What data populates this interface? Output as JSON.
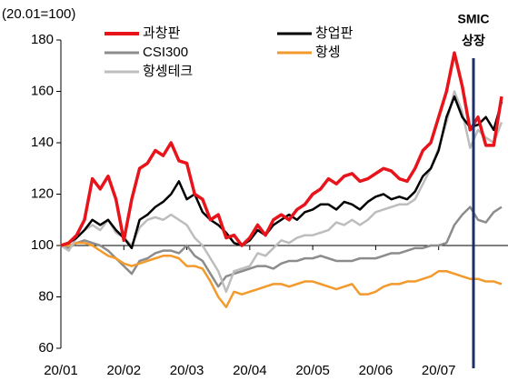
{
  "chart_data": {
    "type": "line",
    "unit_label": "(20.01=100)",
    "annotation": [
      "SMIC",
      "상장"
    ],
    "categories": [
      "20/01",
      null,
      null,
      null,
      null,
      null,
      null,
      null,
      "20/02",
      null,
      null,
      null,
      null,
      null,
      null,
      null,
      "20/03",
      null,
      null,
      null,
      null,
      null,
      null,
      null,
      "20/04",
      null,
      null,
      null,
      null,
      null,
      null,
      null,
      "20/05",
      null,
      null,
      null,
      null,
      null,
      null,
      null,
      "20/06",
      null,
      null,
      null,
      null,
      null,
      null,
      null,
      "20/07",
      null,
      null,
      null,
      null,
      null,
      null,
      null,
      null
    ],
    "ylim": [
      60,
      180
    ],
    "yticks": [
      60,
      80,
      100,
      120,
      140,
      160,
      180
    ],
    "x_axis_at": 100,
    "grid": false,
    "series": [
      {
        "name": "CSI300",
        "color": "#8c8c8c",
        "width": 2.5,
        "values": [
          100,
          99,
          101,
          102,
          101,
          100,
          98,
          95,
          92,
          89,
          94,
          95,
          97,
          98,
          98,
          97,
          100,
          96,
          94,
          89,
          84,
          88,
          89,
          90,
          91,
          92,
          92,
          91,
          93,
          94,
          94,
          95,
          95,
          96,
          95,
          94,
          94,
          94,
          95,
          95,
          95,
          96,
          97,
          97,
          98,
          99,
          99,
          100,
          100,
          101,
          108,
          112,
          115,
          110,
          109,
          113,
          115
        ]
      },
      {
        "name": "항셍",
        "color": "#f39a2c",
        "width": 2.5,
        "values": [
          100,
          100,
          101,
          101,
          100,
          98,
          96,
          95,
          93,
          92,
          93,
          94,
          95,
          96,
          96,
          95,
          92,
          92,
          91,
          86,
          80,
          76,
          82,
          81,
          82,
          83,
          84,
          85,
          85,
          84,
          85,
          86,
          86,
          85,
          84,
          83,
          84,
          85,
          81,
          81,
          82,
          84,
          85,
          85,
          86,
          86,
          87,
          88,
          90,
          90,
          89,
          88,
          87,
          87,
          86,
          86,
          85
        ]
      },
      {
        "name": "항셍테크",
        "color": "#bdbdbd",
        "width": 2.5,
        "values": [
          100,
          98,
          103,
          106,
          108,
          106,
          110,
          105,
          103,
          100,
          107,
          110,
          111,
          110,
          112,
          110,
          108,
          103,
          100,
          95,
          90,
          82,
          90,
          91,
          92,
          97,
          96,
          99,
          102,
          101,
          103,
          104,
          104,
          105,
          106,
          109,
          108,
          110,
          108,
          110,
          113,
          114,
          115,
          116,
          116,
          118,
          124,
          130,
          138,
          148,
          160,
          152,
          138,
          145,
          142,
          140,
          148
        ]
      },
      {
        "name": "창업판",
        "color": "#000000",
        "width": 2.5,
        "values": [
          100,
          101,
          103,
          106,
          110,
          108,
          110,
          106,
          103,
          99,
          110,
          112,
          115,
          117,
          120,
          125,
          118,
          120,
          113,
          110,
          108,
          105,
          101,
          100,
          102,
          106,
          104,
          108,
          110,
          112,
          110,
          113,
          114,
          116,
          116,
          114,
          117,
          116,
          114,
          117,
          119,
          120,
          118,
          119,
          118,
          121,
          127,
          130,
          137,
          150,
          158,
          150,
          146,
          147,
          150,
          145,
          156
        ]
      },
      {
        "name": "과창판",
        "color": "#e8141b",
        "width": 3.5,
        "values": [
          100,
          101,
          104,
          110,
          126,
          122,
          127,
          118,
          102,
          118,
          130,
          132,
          137,
          135,
          140,
          133,
          132,
          120,
          118,
          110,
          112,
          103,
          104,
          100,
          103,
          108,
          104,
          110,
          112,
          110,
          114,
          116,
          120,
          122,
          126,
          124,
          127,
          128,
          125,
          126,
          128,
          130,
          129,
          126,
          125,
          130,
          137,
          140,
          150,
          160,
          175,
          162,
          145,
          150,
          139,
          139,
          158
        ]
      }
    ],
    "legend_order": [
      4,
      3,
      0,
      1,
      2
    ]
  }
}
